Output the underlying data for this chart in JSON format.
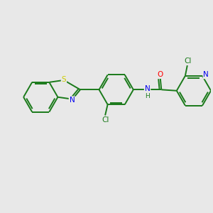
{
  "background_color": "#e8e8e8",
  "bond_color": "#1a7a1a",
  "atom_colors": {
    "S": "#cccc00",
    "N": "#0000ee",
    "O": "#ff0000",
    "Cl": "#1a7a1a",
    "H": "#1a7a1a",
    "C": "#1a7a1a"
  },
  "figsize": [
    3.0,
    3.0
  ],
  "dpi": 100
}
